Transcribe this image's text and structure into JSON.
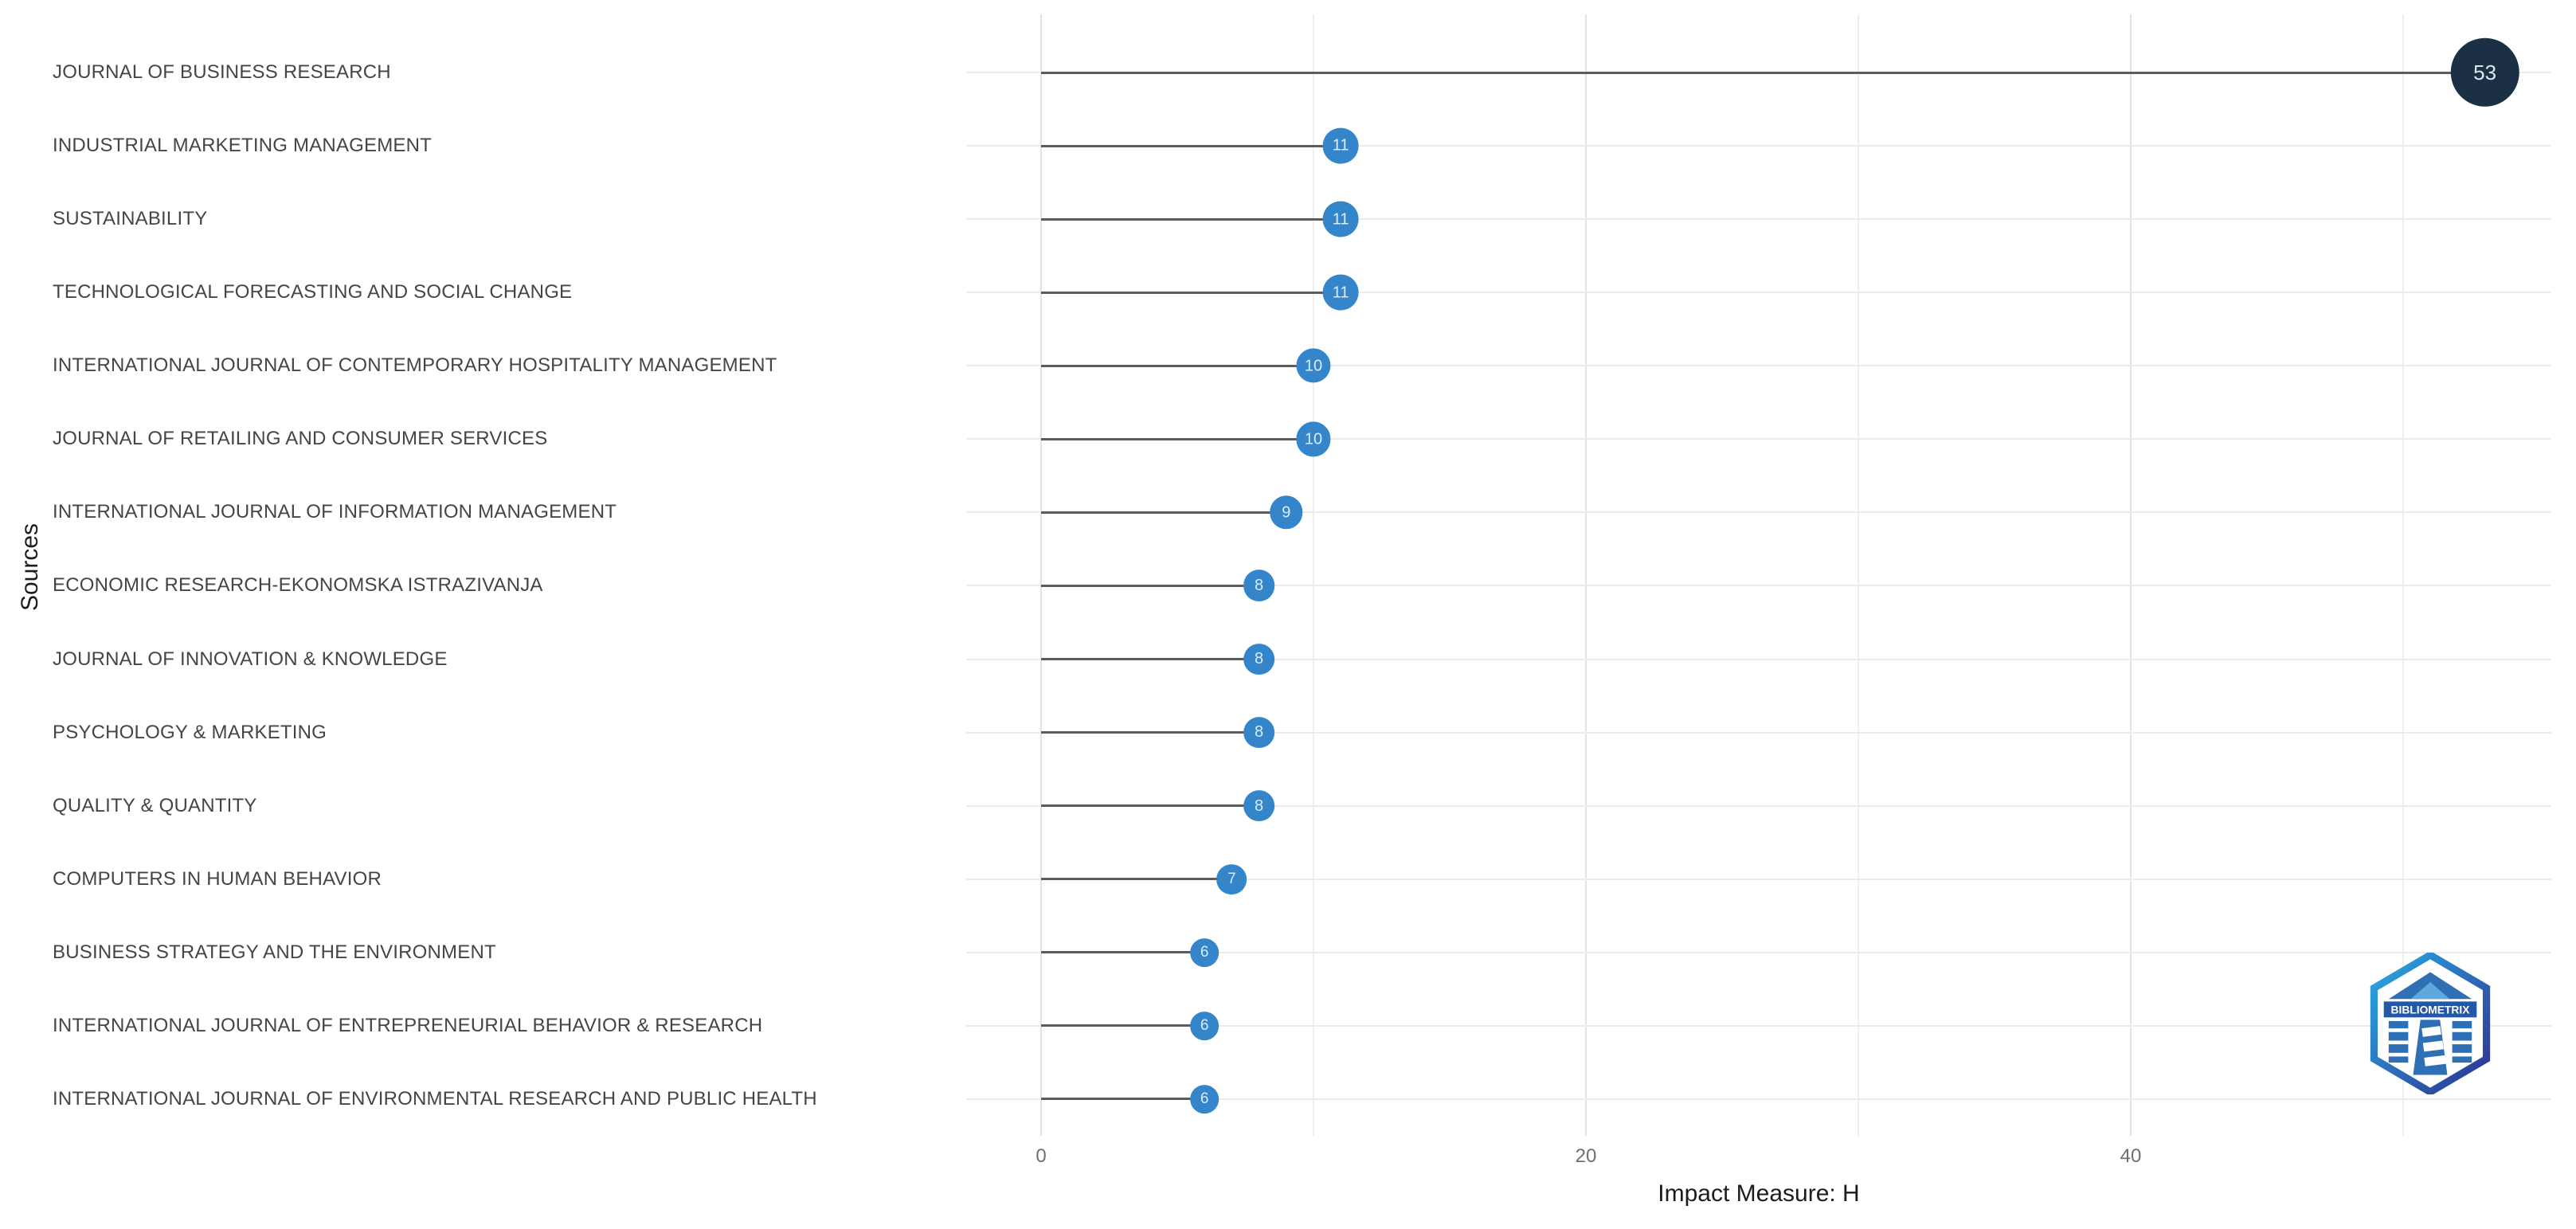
{
  "chart_data": {
    "type": "bar",
    "variant": "horizontal-lollipop",
    "title": "",
    "xlabel": "Impact Measure: H",
    "ylabel": "Sources",
    "categories": [
      "JOURNAL OF BUSINESS RESEARCH",
      "INDUSTRIAL MARKETING MANAGEMENT",
      "SUSTAINABILITY",
      "TECHNOLOGICAL FORECASTING AND SOCIAL CHANGE",
      "INTERNATIONAL JOURNAL OF CONTEMPORARY HOSPITALITY MANAGEMENT",
      "JOURNAL OF RETAILING AND CONSUMER SERVICES",
      "INTERNATIONAL JOURNAL OF INFORMATION MANAGEMENT",
      "ECONOMIC RESEARCH-EKONOMSKA ISTRAZIVANJA",
      "JOURNAL OF INNOVATION & KNOWLEDGE",
      "PSYCHOLOGY & MARKETING",
      "QUALITY & QUANTITY",
      "COMPUTERS IN HUMAN BEHAVIOR",
      "BUSINESS STRATEGY AND THE ENVIRONMENT",
      "INTERNATIONAL JOURNAL OF ENTREPRENEURIAL BEHAVIOR & RESEARCH",
      "INTERNATIONAL JOURNAL OF ENVIRONMENTAL RESEARCH AND PUBLIC HEALTH"
    ],
    "values": [
      53,
      11,
      11,
      11,
      10,
      10,
      9,
      8,
      8,
      8,
      8,
      7,
      6,
      6,
      6
    ],
    "x_ticks": [
      0,
      20,
      40
    ],
    "x_minor_ticks": [
      10,
      30,
      50
    ],
    "xlim": [
      -3,
      55.5
    ],
    "grid": true,
    "legend": false
  },
  "colors": {
    "point": "#3585ca",
    "point_text": "#d9edff",
    "highlight_point": "#1b2f45",
    "highlight_text": "#dde5ee",
    "stem": "#5c5c5c",
    "grid_major": "#e3e3e3",
    "grid_minor": "#efefef",
    "row_grid": "#ebebeb",
    "axis_text": "#6f6f6f",
    "label_text": "#454545",
    "title_text": "#1c1c1c",
    "background": "#ffffff",
    "logo_gradient_start": "#29abe2",
    "logo_gradient_end": "#2e3192",
    "logo_fill": "#2f6fb5",
    "logo_band": "#2458a6"
  },
  "watermark": {
    "label": "BIBLIOMETRIX"
  }
}
